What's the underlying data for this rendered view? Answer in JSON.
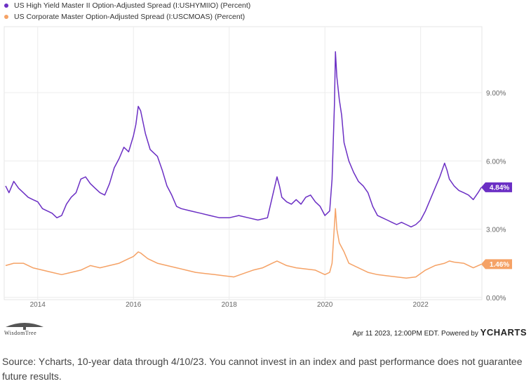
{
  "chart_data": {
    "type": "line",
    "xlim": [
      2013.3,
      2023.28
    ],
    "ylim": [
      -0.1,
      11.9
    ],
    "x_ticks": [
      2014,
      2016,
      2018,
      2020,
      2022
    ],
    "x_tick_labels": [
      "2014",
      "2016",
      "2018",
      "2020",
      "2022"
    ],
    "y_ticks": [
      0,
      3,
      6,
      9
    ],
    "y_tick_labels": [
      "0.00%",
      "3.00%",
      "6.00%",
      "9.00%"
    ],
    "grid": true,
    "legend_position": "top-left",
    "series": [
      {
        "name": "US High Yield Master II Option-Adjusted Spread (I:USHYMIIO) (Percent)",
        "color": "#6b2fc4",
        "last_label": "4.84%",
        "x": [
          2013.33,
          2013.4,
          2013.5,
          2013.6,
          2013.7,
          2013.8,
          2013.9,
          2014.0,
          2014.1,
          2014.2,
          2014.3,
          2014.4,
          2014.5,
          2014.6,
          2014.7,
          2014.8,
          2014.9,
          2015.0,
          2015.1,
          2015.2,
          2015.3,
          2015.4,
          2015.5,
          2015.6,
          2015.7,
          2015.8,
          2015.9,
          2016.0,
          2016.05,
          2016.1,
          2016.15,
          2016.25,
          2016.35,
          2016.5,
          2016.6,
          2016.7,
          2016.8,
          2016.9,
          2017.0,
          2017.2,
          2017.4,
          2017.6,
          2017.8,
          2018.0,
          2018.2,
          2018.4,
          2018.6,
          2018.8,
          2018.9,
          2019.0,
          2019.05,
          2019.1,
          2019.2,
          2019.3,
          2019.4,
          2019.5,
          2019.6,
          2019.7,
          2019.8,
          2019.9,
          2020.0,
          2020.1,
          2020.15,
          2020.2,
          2020.22,
          2020.25,
          2020.3,
          2020.35,
          2020.4,
          2020.5,
          2020.6,
          2020.7,
          2020.8,
          2020.9,
          2021.0,
          2021.1,
          2021.2,
          2021.3,
          2021.4,
          2021.5,
          2021.6,
          2021.7,
          2021.8,
          2021.9,
          2022.0,
          2022.1,
          2022.2,
          2022.3,
          2022.4,
          2022.5,
          2022.55,
          2022.6,
          2022.7,
          2022.8,
          2022.9,
          2023.0,
          2023.1,
          2023.2,
          2023.27
        ],
        "y": [
          4.9,
          4.6,
          5.1,
          4.8,
          4.6,
          4.4,
          4.3,
          4.2,
          3.9,
          3.8,
          3.7,
          3.5,
          3.6,
          4.1,
          4.4,
          4.6,
          5.2,
          5.3,
          5.0,
          4.8,
          4.6,
          4.5,
          5.0,
          5.7,
          6.1,
          6.6,
          6.4,
          7.1,
          7.6,
          8.4,
          8.2,
          7.2,
          6.5,
          6.2,
          5.6,
          4.9,
          4.5,
          4.0,
          3.9,
          3.8,
          3.7,
          3.6,
          3.5,
          3.5,
          3.6,
          3.5,
          3.4,
          3.5,
          4.4,
          5.3,
          4.9,
          4.4,
          4.2,
          4.1,
          4.3,
          4.1,
          4.4,
          4.5,
          4.2,
          4.0,
          3.6,
          3.8,
          5.2,
          8.5,
          10.8,
          9.7,
          8.7,
          8.0,
          6.8,
          6.0,
          5.5,
          5.1,
          4.9,
          4.6,
          4.0,
          3.6,
          3.5,
          3.4,
          3.3,
          3.2,
          3.3,
          3.2,
          3.1,
          3.2,
          3.4,
          3.8,
          4.3,
          4.8,
          5.3,
          5.9,
          5.6,
          5.2,
          4.9,
          4.7,
          4.6,
          4.5,
          4.3,
          4.6,
          4.84
        ]
      },
      {
        "name": "US Corporate Master Option-Adjusted Spread (I:USCMOAS) (Percent)",
        "color": "#f5a266",
        "last_label": "1.46%",
        "x": [
          2013.33,
          2013.5,
          2013.7,
          2013.9,
          2014.1,
          2014.3,
          2014.5,
          2014.7,
          2014.9,
          2015.1,
          2015.3,
          2015.5,
          2015.7,
          2015.9,
          2016.0,
          2016.1,
          2016.15,
          2016.3,
          2016.5,
          2016.7,
          2016.9,
          2017.1,
          2017.3,
          2017.5,
          2017.7,
          2017.9,
          2018.1,
          2018.3,
          2018.5,
          2018.7,
          2018.9,
          2019.0,
          2019.2,
          2019.4,
          2019.6,
          2019.8,
          2020.0,
          2020.1,
          2020.15,
          2020.2,
          2020.22,
          2020.25,
          2020.3,
          2020.4,
          2020.5,
          2020.7,
          2020.9,
          2021.1,
          2021.3,
          2021.5,
          2021.7,
          2021.9,
          2022.1,
          2022.3,
          2022.5,
          2022.6,
          2022.7,
          2022.9,
          2023.1,
          2023.27
        ],
        "y": [
          1.4,
          1.5,
          1.5,
          1.3,
          1.2,
          1.1,
          1.0,
          1.1,
          1.2,
          1.4,
          1.3,
          1.4,
          1.5,
          1.7,
          1.8,
          2.0,
          1.95,
          1.7,
          1.5,
          1.4,
          1.3,
          1.2,
          1.1,
          1.05,
          1.0,
          0.95,
          0.9,
          1.05,
          1.2,
          1.3,
          1.5,
          1.6,
          1.4,
          1.3,
          1.25,
          1.2,
          1.0,
          1.1,
          1.5,
          3.2,
          3.9,
          3.0,
          2.4,
          2.0,
          1.5,
          1.3,
          1.1,
          1.0,
          0.95,
          0.9,
          0.85,
          0.9,
          1.2,
          1.4,
          1.5,
          1.6,
          1.55,
          1.5,
          1.3,
          1.46
        ]
      }
    ]
  },
  "footer": {
    "timestamp": "Apr 11 2023, 12:00PM EDT. Powered by",
    "brand_logo": "YCHARTS",
    "left_logo": "WisdomTree"
  },
  "source_note": "Source: Ycharts, 10-year data through 4/10/23. You cannot invest in an index and past performance does not guarantee future results."
}
